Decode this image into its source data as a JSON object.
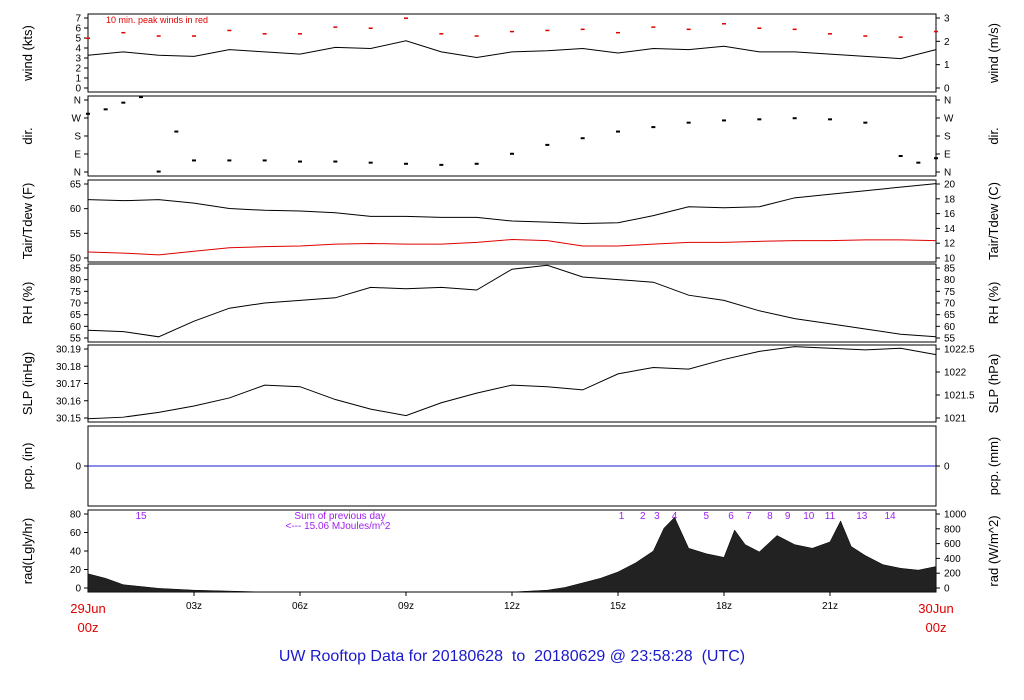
{
  "chart_data": [
    {
      "type": "line",
      "panel": "wind",
      "ylabel_left": "wind (kts)",
      "ylabel_right": "wind (m/s)",
      "ylim": [
        0,
        7
      ],
      "yticks_left": [
        "0",
        "1",
        "2",
        "3",
        "4",
        "5",
        "6",
        "7"
      ],
      "yticks_right": [
        "0",
        "1",
        "2",
        "3"
      ],
      "annotation": "10 min. peak winds in red",
      "series": [
        {
          "color": "#000000",
          "x": [
            0,
            1,
            2,
            3,
            4,
            5,
            6,
            7,
            8,
            9,
            10,
            11,
            12,
            13,
            14,
            15,
            16,
            17,
            18,
            19,
            20,
            21,
            22,
            23,
            24
          ],
          "values": [
            3.3,
            3.6,
            3.3,
            3.2,
            3.8,
            3.6,
            3.4,
            4.0,
            3.9,
            4.6,
            3.6,
            3.1,
            3.6,
            3.7,
            3.9,
            3.5,
            3.9,
            3.8,
            4.1,
            3.6,
            3.6,
            3.4,
            3.2,
            3.0,
            3.8
          ]
        },
        {
          "color": "#e00000",
          "x": [
            0,
            1,
            2,
            3,
            4,
            5,
            6,
            7,
            8,
            9,
            10,
            11,
            12,
            13,
            14,
            15,
            16,
            17,
            18,
            19,
            20,
            21,
            22,
            23,
            24
          ],
          "values": [
            4.8,
            5.3,
            5.0,
            5.0,
            5.5,
            5.2,
            5.2,
            5.8,
            5.7,
            6.6,
            5.2,
            5.0,
            5.4,
            5.5,
            5.6,
            5.3,
            5.8,
            5.6,
            6.1,
            5.7,
            5.6,
            5.2,
            5.0,
            4.9,
            5.4
          ]
        }
      ]
    },
    {
      "type": "scatter",
      "panel": "dir",
      "ylabel_left": "dir.",
      "ylabel_right": "dir.",
      "yticks_left": [
        "N",
        "E",
        "S",
        "W",
        "N"
      ],
      "yticks_right": [
        "N",
        "E",
        "S",
        "W",
        "N"
      ],
      "x": [
        0,
        0.5,
        1,
        1.5,
        2,
        2.5,
        3,
        4,
        5,
        6,
        7,
        8,
        9,
        10,
        11,
        12,
        13,
        14,
        15,
        16,
        17,
        18,
        19,
        20,
        21,
        22,
        23,
        23.5,
        24
      ],
      "values": [
        280,
        300,
        330,
        355,
        20,
        200,
        70,
        70,
        70,
        65,
        65,
        60,
        55,
        50,
        55,
        100,
        140,
        170,
        200,
        220,
        240,
        250,
        255,
        260,
        255,
        240,
        90,
        60,
        80
      ]
    },
    {
      "type": "line",
      "panel": "temp",
      "ylabel_left": "Tair/Tdew (F)",
      "ylabel_right": "Tair/Tdew (C)",
      "ylim": [
        47,
        70
      ],
      "yticks_left": [
        "50",
        "55",
        "60",
        "65"
      ],
      "yticks_right": [
        "10",
        "12",
        "14",
        "16",
        "18",
        "20"
      ],
      "series": [
        {
          "color": "#000000",
          "x": [
            0,
            1,
            2,
            3,
            4,
            5,
            6,
            7,
            8,
            9,
            10,
            11,
            12,
            13,
            14,
            15,
            16,
            17,
            18,
            19,
            20,
            21,
            22,
            23,
            24
          ],
          "values": [
            64.5,
            64.2,
            64.5,
            63.5,
            62.0,
            61.5,
            61.3,
            60.8,
            59.8,
            59.8,
            59.5,
            59.5,
            58.5,
            58.2,
            57.8,
            58.0,
            60.0,
            62.5,
            62.2,
            62.5,
            65.0,
            66.0,
            67.0,
            68.0,
            69.0
          ]
        },
        {
          "color": "#e00000",
          "x": [
            0,
            1,
            2,
            3,
            4,
            5,
            6,
            7,
            8,
            9,
            10,
            11,
            12,
            13,
            14,
            15,
            16,
            17,
            18,
            19,
            20,
            21,
            22,
            23,
            24
          ],
          "values": [
            49.8,
            49.5,
            49.0,
            50.0,
            51.0,
            51.3,
            51.5,
            52.0,
            52.2,
            52.0,
            52.0,
            52.5,
            53.3,
            53.0,
            51.5,
            51.5,
            52.0,
            52.5,
            52.5,
            52.8,
            53.0,
            53.0,
            53.2,
            53.2,
            53.0
          ]
        }
      ]
    },
    {
      "type": "line",
      "panel": "rh",
      "ylabel_left": "RH (%)",
      "ylabel_right": "RH (%)",
      "ylim": [
        55,
        85
      ],
      "yticks_left": [
        "55",
        "60",
        "65",
        "70",
        "75",
        "80",
        "85"
      ],
      "yticks_right": [
        "55",
        "60",
        "65",
        "70",
        "75",
        "80",
        "85"
      ],
      "series": [
        {
          "color": "#000000",
          "x": [
            0,
            1,
            2,
            3,
            4,
            5,
            6,
            7,
            8,
            9,
            10,
            11,
            12,
            13,
            14,
            15,
            16,
            17,
            18,
            19,
            20,
            21,
            22,
            23,
            24
          ],
          "values": [
            59.5,
            59.0,
            57.0,
            63.0,
            68.0,
            70.0,
            71.0,
            72.0,
            76.0,
            75.5,
            76.0,
            75.0,
            83.0,
            84.5,
            80.0,
            79.0,
            78.0,
            73.0,
            71.0,
            67.0,
            64.0,
            62.0,
            60.0,
            58.0,
            57.0
          ]
        }
      ]
    },
    {
      "type": "line",
      "panel": "slp",
      "ylabel_left": "SLP (inHg)",
      "ylabel_right": "SLP (hPa)",
      "ylim": [
        30.148,
        30.196
      ],
      "yticks_left": [
        "30.15",
        "30.16",
        "30.17",
        "30.18",
        "30.19"
      ],
      "yticks_right": [
        "1021",
        "1021.5",
        "1022",
        "1022.5"
      ],
      "series": [
        {
          "color": "#000000",
          "x": [
            0,
            1,
            2,
            3,
            4,
            5,
            6,
            7,
            8,
            9,
            10,
            11,
            12,
            13,
            14,
            15,
            16,
            17,
            18,
            19,
            20,
            21,
            22,
            23,
            24
          ],
          "values": [
            30.15,
            30.151,
            30.154,
            30.158,
            30.163,
            30.171,
            30.17,
            30.162,
            30.156,
            30.152,
            30.16,
            30.166,
            30.171,
            30.17,
            30.168,
            30.178,
            30.182,
            30.181,
            30.187,
            30.192,
            30.195,
            30.194,
            30.193,
            30.194,
            30.19
          ]
        }
      ]
    },
    {
      "type": "line",
      "panel": "pcp",
      "ylabel_left": "pcp. (in)",
      "ylabel_right": "pcp. (mm)",
      "yticks_left": [
        "0"
      ],
      "yticks_right": [
        "0"
      ],
      "series": [
        {
          "color": "#1a1acc",
          "x": [
            0,
            24
          ],
          "values": [
            0,
            0
          ]
        }
      ]
    },
    {
      "type": "area",
      "panel": "rad",
      "ylabel_left": "rad(Lgly/hr)",
      "ylabel_right": "rad (W/m^2)",
      "ylim": [
        0,
        90
      ],
      "yticks_left": [
        "0",
        "20",
        "40",
        "60",
        "80"
      ],
      "yticks_right": [
        "0",
        "200",
        "400",
        "600",
        "800",
        "1000"
      ],
      "hour_labels": [
        "15",
        "1",
        "2",
        "3",
        "4",
        "5",
        "6",
        "7",
        "8",
        "9",
        "10",
        "11",
        "13",
        "14"
      ],
      "hour_label_x": [
        1.5,
        15.1,
        15.7,
        16.1,
        16.6,
        17.5,
        18.2,
        18.7,
        19.3,
        19.8,
        20.4,
        21.0,
        21.9,
        22.7
      ],
      "sum_label_1": "Sum of previous day",
      "sum_label_2": "<--- 15.06 MJoules/m^2",
      "series": [
        {
          "color": "#000000",
          "x": [
            0,
            0.5,
            1,
            2,
            3,
            4,
            5,
            6,
            7,
            8,
            9,
            10,
            11,
            12,
            13,
            13.5,
            14,
            14.5,
            15,
            15.5,
            16,
            16.3,
            16.6,
            17,
            17.5,
            18,
            18.3,
            18.6,
            19,
            19.5,
            20,
            20.5,
            21,
            21.3,
            21.6,
            22,
            22.5,
            23,
            23.5,
            24
          ],
          "values": [
            20,
            15,
            8,
            4,
            2,
            1,
            0,
            0,
            0,
            0,
            0,
            0,
            0,
            0,
            2,
            5,
            10,
            15,
            22,
            32,
            45,
            70,
            82,
            48,
            42,
            38,
            68,
            52,
            44,
            62,
            52,
            48,
            55,
            78,
            50,
            40,
            30,
            26,
            24,
            28
          ]
        }
      ]
    }
  ],
  "xaxis": {
    "tick_labels": [
      "03z",
      "06z",
      "09z",
      "12z",
      "15z",
      "18z",
      "21z"
    ],
    "start_date": "29Jun",
    "start_time": "00z",
    "end_date": "30Jun",
    "end_time": "00z"
  },
  "footer_title": "UW Rooftop Data for 20180628  to  20180629 @ 23:58:28  (UTC)"
}
